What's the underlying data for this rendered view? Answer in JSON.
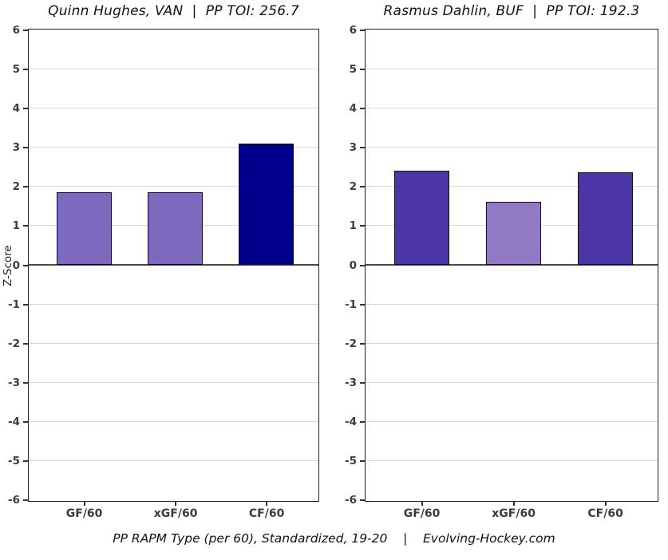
{
  "caption": "PP RAPM Type (per 60), Standardized, 19-20    |    Evolving-Hockey.com",
  "colors": {
    "background": "#ffffff",
    "grid": "#d9d9d9",
    "zero_line": "#4a4a4a",
    "axis_border": "#1f1f1f",
    "tick": "#333333",
    "tick_label": "#3c3c3c"
  },
  "chart_data": [
    {
      "type": "bar",
      "title": "Quinn Hughes, VAN  |  PP TOI: 256.7",
      "player": "Quinn Hughes",
      "team": "VAN",
      "pp_toi": 256.7,
      "categories": [
        "GF/60",
        "xGF/60",
        "CF/60"
      ],
      "values": [
        1.85,
        1.84,
        3.1
      ],
      "bar_colors": [
        "#7c68bc",
        "#7c68bc",
        "#00008b"
      ],
      "xlabel": "",
      "ylabel": "Z-Score",
      "ylim": [
        -6,
        6
      ],
      "yticks": [
        6,
        5,
        4,
        3,
        2,
        1,
        0,
        -1,
        -2,
        -3,
        -4,
        -5,
        -6
      ],
      "grid": true,
      "legend": "none"
    },
    {
      "type": "bar",
      "title": "Rasmus Dahlin, BUF  |  PP TOI: 192.3",
      "player": "Rasmus Dahlin",
      "team": "BUF",
      "pp_toi": 192.3,
      "categories": [
        "GF/60",
        "xGF/60",
        "CF/60"
      ],
      "values": [
        2.4,
        1.6,
        2.35
      ],
      "bar_colors": [
        "#4c35a5",
        "#9179c4",
        "#4c35a5"
      ],
      "xlabel": "",
      "ylabel": "Z-Score",
      "ylim": [
        -6,
        6
      ],
      "yticks": [
        6,
        5,
        4,
        3,
        2,
        1,
        0,
        -1,
        -2,
        -3,
        -4,
        -5,
        -6
      ],
      "grid": true,
      "legend": "none"
    }
  ]
}
